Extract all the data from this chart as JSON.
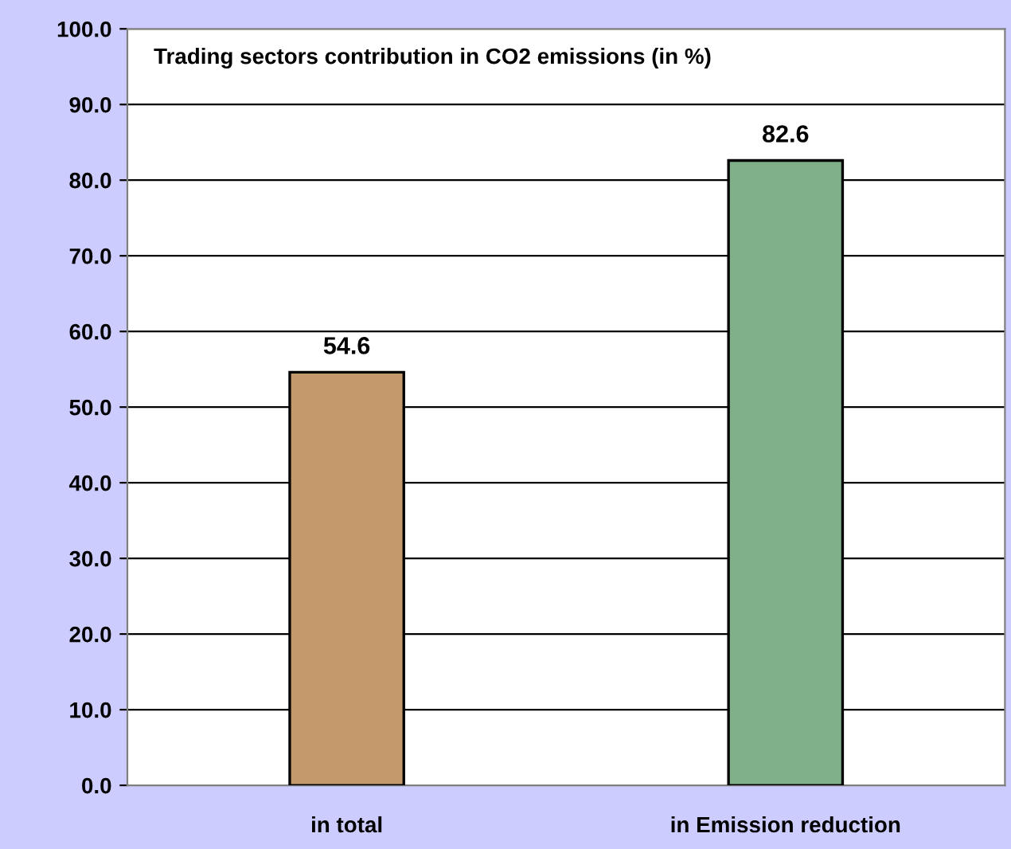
{
  "chart_data": {
    "type": "bar",
    "title": "Trading sectors contribution in CO2 emissions (in %)",
    "categories": [
      "in total",
      "in Emission reduction"
    ],
    "values": [
      54.6,
      82.6
    ],
    "colors": [
      "#c49a6c",
      "#7fb08a"
    ],
    "data_labels": true,
    "ylim": [
      0,
      100
    ],
    "yticks": [
      {
        "value": 0,
        "label": "0.0"
      },
      {
        "value": 10,
        "label": "10.0"
      },
      {
        "value": 20,
        "label": "20.0"
      },
      {
        "value": 30,
        "label": "30.0"
      },
      {
        "value": 40,
        "label": "40.0"
      },
      {
        "value": 50,
        "label": "50.0"
      },
      {
        "value": 60,
        "label": "60.0"
      },
      {
        "value": 70,
        "label": "70.0"
      },
      {
        "value": 80,
        "label": "80.0"
      },
      {
        "value": 90,
        "label": "90.0"
      },
      {
        "value": 100,
        "label": "100.0"
      }
    ],
    "grid": "y",
    "legend": false
  }
}
